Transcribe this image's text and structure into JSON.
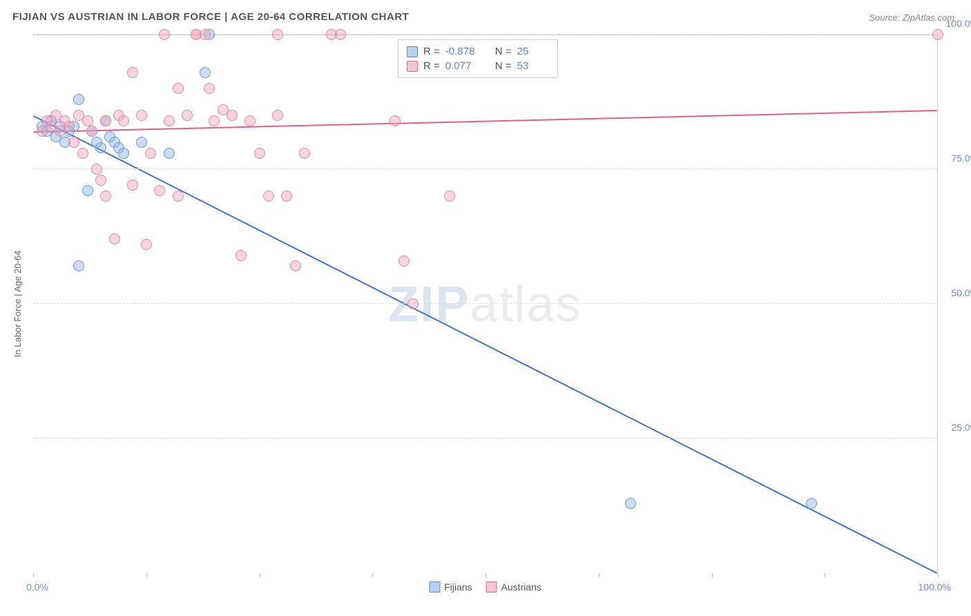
{
  "title": "FIJIAN VS AUSTRIAN IN LABOR FORCE | AGE 20-64 CORRELATION CHART",
  "source": "Source: ZipAtlas.com",
  "y_axis_title": "In Labor Force | Age 20-64",
  "watermark_zip": "ZIP",
  "watermark_atlas": "atlas",
  "chart": {
    "type": "scatter",
    "xlim": [
      0,
      100
    ],
    "ylim": [
      0,
      100
    ],
    "x_ticks": [
      0,
      12.5,
      25,
      37.5,
      50,
      62.5,
      75,
      87.5,
      100
    ],
    "y_gridlines": [
      25,
      50,
      75,
      100
    ],
    "x_label_0": "0.0%",
    "x_label_100": "100.0%",
    "y_labels": {
      "25": "25.0%",
      "50": "50.0%",
      "75": "75.0%",
      "100": "100.0%"
    },
    "background_color": "#ffffff",
    "grid_color": "#dddddd",
    "border_color": "#cccccc",
    "marker_radius": 8,
    "marker_opacity": 0.55,
    "line_width": 2
  },
  "series": [
    {
      "key": "fijians",
      "label": "Fijians",
      "swatch_fill": "#b8d0ef",
      "swatch_border": "#5b8ad6",
      "marker_fill": "rgba(140,180,230,0.45)",
      "marker_border": "#6a9ad8",
      "line_color": "#3b74c9",
      "R_label": "R =",
      "R": "-0.878",
      "N_label": "N =",
      "N": "25",
      "regression": {
        "x1": 0,
        "y1": 85,
        "x2": 100,
        "y2": 0
      },
      "points": [
        [
          1,
          83
        ],
        [
          1.5,
          82
        ],
        [
          2,
          84
        ],
        [
          2.5,
          81
        ],
        [
          3,
          83
        ],
        [
          3.5,
          80
        ],
        [
          4,
          82
        ],
        [
          4.5,
          83
        ],
        [
          5,
          88
        ],
        [
          5,
          57
        ],
        [
          6,
          71
        ],
        [
          6.5,
          82
        ],
        [
          7,
          80
        ],
        [
          7.5,
          79
        ],
        [
          8,
          84
        ],
        [
          8.5,
          81
        ],
        [
          9,
          80
        ],
        [
          9.5,
          79
        ],
        [
          10,
          78
        ],
        [
          12,
          80
        ],
        [
          15,
          78
        ],
        [
          19,
          93
        ],
        [
          19.5,
          100
        ],
        [
          66,
          13
        ],
        [
          86,
          13
        ]
      ]
    },
    {
      "key": "austrians",
      "label": "Austrians",
      "swatch_fill": "#f6c7d4",
      "swatch_border": "#e06a8a",
      "marker_fill": "rgba(240,160,185,0.45)",
      "marker_border": "#e28aa4",
      "line_color": "#e75d88",
      "R_label": "R =",
      "R": "0.077",
      "N_label": "N =",
      "N": "53",
      "regression": {
        "x1": 0,
        "y1": 82,
        "x2": 100,
        "y2": 86
      },
      "points": [
        [
          1,
          82
        ],
        [
          1.5,
          84
        ],
        [
          2,
          83
        ],
        [
          2.5,
          85
        ],
        [
          3,
          82
        ],
        [
          3.5,
          84
        ],
        [
          4,
          83
        ],
        [
          4.5,
          80
        ],
        [
          5,
          85
        ],
        [
          5.5,
          78
        ],
        [
          6,
          84
        ],
        [
          6.5,
          82
        ],
        [
          7,
          75
        ],
        [
          7.5,
          73
        ],
        [
          8,
          84
        ],
        [
          8,
          70
        ],
        [
          9,
          62
        ],
        [
          9.5,
          85
        ],
        [
          10,
          84
        ],
        [
          11,
          72
        ],
        [
          11,
          93
        ],
        [
          12,
          85
        ],
        [
          12.5,
          61
        ],
        [
          13,
          78
        ],
        [
          14,
          71
        ],
        [
          14.5,
          100
        ],
        [
          15,
          84
        ],
        [
          16,
          90
        ],
        [
          16,
          70
        ],
        [
          17,
          85
        ],
        [
          18,
          100
        ],
        [
          18,
          100
        ],
        [
          19,
          100
        ],
        [
          19.5,
          90
        ],
        [
          20,
          84
        ],
        [
          21,
          86
        ],
        [
          22,
          85
        ],
        [
          23,
          59
        ],
        [
          24,
          84
        ],
        [
          25,
          78
        ],
        [
          26,
          70
        ],
        [
          27,
          85
        ],
        [
          27,
          100
        ],
        [
          28,
          70
        ],
        [
          29,
          57
        ],
        [
          30,
          78
        ],
        [
          33,
          100
        ],
        [
          34,
          100
        ],
        [
          40,
          84
        ],
        [
          41,
          58
        ],
        [
          42,
          50
        ],
        [
          46,
          70
        ],
        [
          100,
          100
        ]
      ]
    }
  ],
  "bottom_legend": [
    {
      "key": "fijians",
      "label": "Fijians"
    },
    {
      "key": "austrians",
      "label": "Austrians"
    }
  ]
}
